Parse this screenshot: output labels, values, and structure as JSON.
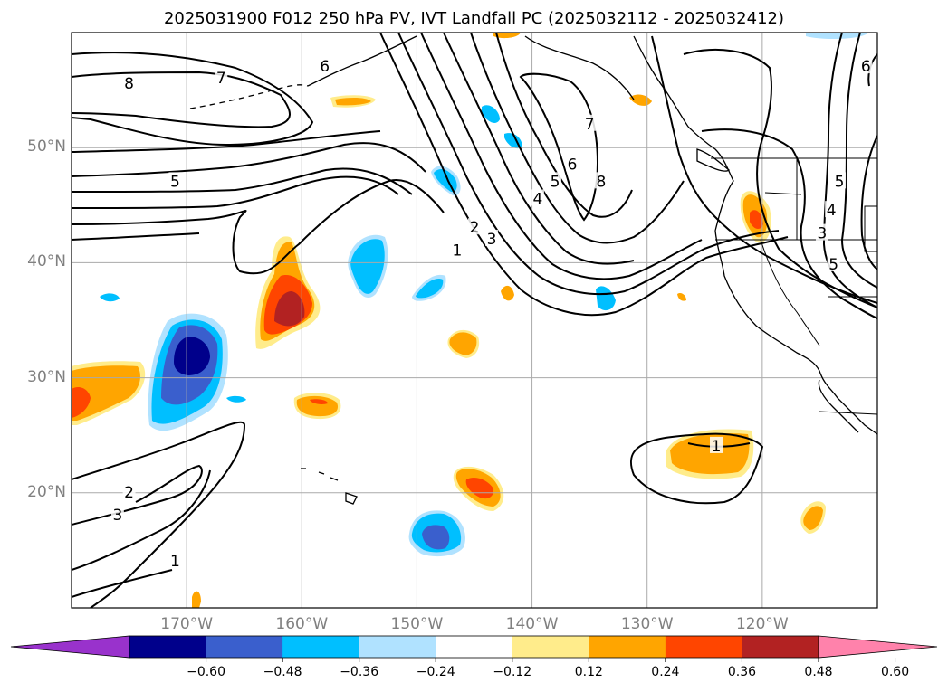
{
  "title": "2025031900 F012 250 hPa PV, IVT Landfall PC (2025032112 - 2025032412)",
  "map": {
    "lon_range": [
      -180,
      -110
    ],
    "lat_range": [
      10,
      60
    ],
    "lat_ticks": [
      {
        "value": 50,
        "label": "50°N"
      },
      {
        "value": 40,
        "label": "40°N"
      },
      {
        "value": 30,
        "label": "30°N"
      },
      {
        "value": 20,
        "label": "20°N"
      }
    ],
    "lon_ticks": [
      {
        "value": -170,
        "label": "170°W"
      },
      {
        "value": -160,
        "label": "160°W"
      },
      {
        "value": -150,
        "label": "150°W"
      },
      {
        "value": -140,
        "label": "140°W"
      },
      {
        "value": -130,
        "label": "130°W"
      },
      {
        "value": -120,
        "label": "120°W"
      }
    ],
    "grid": true,
    "contour_labels": [
      {
        "text": "8",
        "lon": -175,
        "lat": 55.5
      },
      {
        "text": "7",
        "lon": -167,
        "lat": 56
      },
      {
        "text": "6",
        "lon": -158,
        "lat": 57
      },
      {
        "text": "5",
        "lon": -171,
        "lat": 47
      },
      {
        "text": "6",
        "lon": -136.5,
        "lat": 48.5
      },
      {
        "text": "5",
        "lon": -138,
        "lat": 47
      },
      {
        "text": "4",
        "lon": -139.5,
        "lat": 45.5
      },
      {
        "text": "2",
        "lon": -145,
        "lat": 43
      },
      {
        "text": "3",
        "lon": -143.5,
        "lat": 42
      },
      {
        "text": "1",
        "lon": -146.5,
        "lat": 41
      },
      {
        "text": "7",
        "lon": -135,
        "lat": 52
      },
      {
        "text": "8",
        "lon": -134,
        "lat": 47
      },
      {
        "text": "6",
        "lon": -111,
        "lat": 57
      },
      {
        "text": "5",
        "lon": -113.3,
        "lat": 47
      },
      {
        "text": "4",
        "lon": -114,
        "lat": 44.5
      },
      {
        "text": "3",
        "lon": -114.8,
        "lat": 42.5
      },
      {
        "text": "5",
        "lon": -113.8,
        "lat": 39.8
      },
      {
        "text": "1",
        "lon": -124,
        "lat": 24
      },
      {
        "text": "2",
        "lon": -175,
        "lat": 20
      },
      {
        "text": "3",
        "lon": -176,
        "lat": 18
      },
      {
        "text": "1",
        "lon": -171,
        "lat": 14
      }
    ]
  },
  "colorbar": {
    "tick_labels": [
      "−0.60",
      "−0.48",
      "−0.36",
      "−0.24",
      "−0.12",
      "0.12",
      "0.24",
      "0.36",
      "0.48",
      "0.60"
    ],
    "colors": [
      "#9932cc",
      "#00008b",
      "#3a5fcd",
      "#00bfff",
      "#b0e2ff",
      "#ffffff",
      "#ffec8b",
      "#ffa500",
      "#ff4500",
      "#b22222",
      "#ff82ab"
    ]
  }
}
